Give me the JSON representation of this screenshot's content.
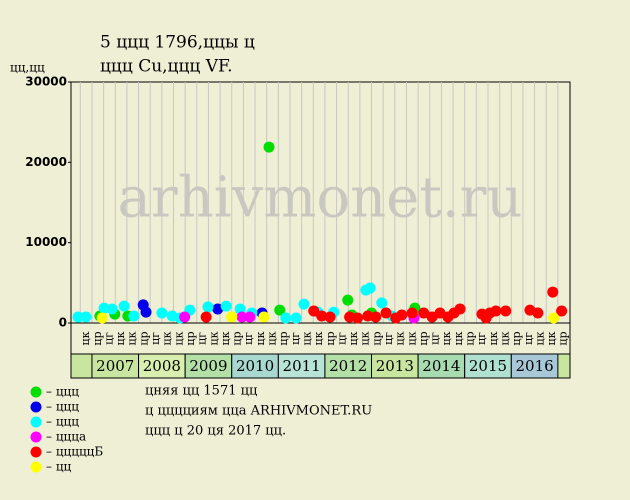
{
  "chart_data": {
    "type": "scatter",
    "title": [
      "5 ццц 1796,ццы ц",
      "ццц Cu,ццц VF."
    ],
    "y_label": "цц,цц",
    "watermark": "arhivmonet.ru",
    "xlim": [
      2006.55,
      2017.26
    ],
    "ylim": [
      0,
      30000
    ],
    "yticks": [
      0,
      10000,
      20000,
      30000
    ],
    "year_ticks": [
      2007,
      2008,
      2009,
      2010,
      2011,
      2012,
      2013,
      2014,
      2015,
      2016
    ],
    "year_colors": [
      "#c8e6a0",
      "#d8efb0",
      "#b4e0a8",
      "#a8d8d0",
      "#b8e4d8",
      "#b4e0a8",
      "#c8e6a0",
      "#a8dcb0",
      "#b0e0d0",
      "#a8c8d8"
    ],
    "month_ticks": [
      {
        "value": 2006.75,
        "label": "цк"
      },
      {
        "value": 2007.0,
        "label": "цр"
      },
      {
        "value": 2007.25,
        "label": "цг"
      },
      {
        "value": 2007.5,
        "label": "цк"
      },
      {
        "value": 2007.75,
        "label": "цк"
      },
      {
        "value": 2008.0,
        "label": "цр"
      },
      {
        "value": 2008.25,
        "label": "цг"
      },
      {
        "value": 2008.5,
        "label": "цк"
      },
      {
        "value": 2008.75,
        "label": "цк"
      },
      {
        "value": 2009.0,
        "label": "цр"
      },
      {
        "value": 2009.25,
        "label": "цг"
      },
      {
        "value": 2009.5,
        "label": "цк"
      },
      {
        "value": 2009.75,
        "label": "цк"
      },
      {
        "value": 2010.0,
        "label": "цр"
      },
      {
        "value": 2010.25,
        "label": "цг"
      },
      {
        "value": 2010.5,
        "label": "цк"
      },
      {
        "value": 2010.75,
        "label": "цк"
      },
      {
        "value": 2011.0,
        "label": "цр"
      },
      {
        "value": 2011.25,
        "label": "цг"
      },
      {
        "value": 2011.5,
        "label": "цк"
      },
      {
        "value": 2011.75,
        "label": "цк"
      },
      {
        "value": 2012.0,
        "label": "цр"
      },
      {
        "value": 2012.25,
        "label": "цг"
      },
      {
        "value": 2012.5,
        "label": "цк"
      },
      {
        "value": 2012.75,
        "label": "цк"
      },
      {
        "value": 2013.0,
        "label": "цр"
      },
      {
        "value": 2013.25,
        "label": "цг"
      },
      {
        "value": 2013.5,
        "label": "цк"
      },
      {
        "value": 2013.75,
        "label": "цк"
      },
      {
        "value": 2014.0,
        "label": "цр"
      },
      {
        "value": 2014.25,
        "label": "цг"
      },
      {
        "value": 2014.5,
        "label": "цк"
      },
      {
        "value": 2014.75,
        "label": "цк"
      },
      {
        "value": 2015.0,
        "label": "цр"
      },
      {
        "value": 2015.25,
        "label": "цг"
      },
      {
        "value": 2015.5,
        "label": "цк"
      },
      {
        "value": 2015.75,
        "label": "цк"
      },
      {
        "value": 2016.0,
        "label": "цр"
      },
      {
        "value": 2016.25,
        "label": "цг"
      },
      {
        "value": 2016.5,
        "label": "цк"
      },
      {
        "value": 2016.75,
        "label": "цк"
      },
      {
        "value": 2017.0,
        "label": "цр"
      }
    ],
    "series": [
      {
        "name": "– ццц",
        "color": "#00dd00",
        "x": [
          2007.17,
          2007.49,
          2007.77,
          2010.8,
          2011.03,
          2012.49,
          2012.58,
          2013.0,
          2013.93
        ],
        "values": [
          870,
          1100,
          870,
          21900,
          1600,
          2850,
          1000,
          1250,
          1850
        ]
      },
      {
        "name": "– ццц",
        "color": "#0000ee",
        "x": [
          2008.1,
          2008.16,
          2009.7,
          2010.65
        ],
        "values": [
          2250,
          1350,
          1750,
          1250
        ]
      },
      {
        "name": "– ццц",
        "color": "#00ffff",
        "x": [
          2006.7,
          2006.87,
          2007.26,
          2007.43,
          2007.69,
          2007.9,
          2008.5,
          2008.72,
          2008.89,
          2009.1,
          2009.49,
          2009.88,
          2010.18,
          2010.43,
          2011.16,
          2011.38,
          2011.55,
          2011.85,
          2012.19,
          2012.88,
          2012.97,
          2013.22,
          2013.44
        ],
        "values": [
          750,
          750,
          1850,
          1750,
          2100,
          870,
          1250,
          870,
          620,
          1600,
          2000,
          2100,
          1750,
          1250,
          620,
          620,
          2350,
          1350,
          1350,
          4100,
          4350,
          2500,
          870
        ]
      },
      {
        "name": "– ццца",
        "color": "#ff00ff",
        "x": [
          2008.99,
          2010.22,
          2010.39,
          2013.91
        ],
        "values": [
          750,
          750,
          750,
          620
        ]
      },
      {
        "name": "– цццццБ",
        "color": "#ff0000",
        "x": [
          2009.45,
          2011.76,
          2011.93,
          2012.11,
          2012.53,
          2012.7,
          2012.92,
          2013.09,
          2013.31,
          2013.52,
          2013.65,
          2013.87,
          2014.12,
          2014.3,
          2014.47,
          2014.64,
          2014.77,
          2014.9,
          2015.37,
          2015.46,
          2015.54,
          2015.67,
          2015.88,
          2016.4,
          2016.57,
          2016.89,
          2017.08
        ],
        "values": [
          750,
          1500,
          870,
          750,
          750,
          620,
          870,
          750,
          1250,
          620,
          1000,
          1250,
          1250,
          750,
          1250,
          750,
          1250,
          1750,
          1100,
          620,
          1250,
          1500,
          1500,
          1600,
          1250,
          3850,
          1500
        ]
      },
      {
        "name": "– цц",
        "color": "#ffff00",
        "x": [
          2007.22,
          2010.0,
          2010.69,
          2016.91
        ],
        "values": [
          620,
          750,
          750,
          620
        ]
      }
    ],
    "notes": [
      "цняя цц 1571 цц",
      "ц цццциям цца ARHIVMONET.RU",
      "ццц ц 20 ця 2017 цц."
    ]
  }
}
